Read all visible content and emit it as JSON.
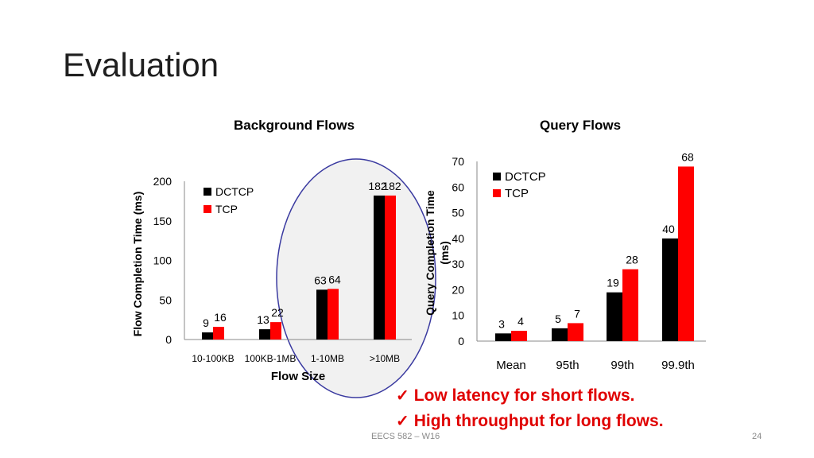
{
  "slide": {
    "title": "Evaluation",
    "footer": "EECS 582 – W16",
    "page_number": "24"
  },
  "takeaways": [
    "Low latency for short flows.",
    "High throughput for long flows."
  ],
  "colors": {
    "dctcp": "#000000",
    "tcp": "#ff0000",
    "highlight_stroke": "#3a3aa0",
    "highlight_fill": "#f1f1f1",
    "takeaway_text": "#e00000"
  },
  "chart_data": [
    {
      "type": "bar",
      "title": "Background Flows",
      "xlabel": "Flow Size",
      "ylabel": "Flow Completion Time (ms)",
      "ylim": [
        0,
        200
      ],
      "yticks": [
        0,
        50,
        100,
        150,
        200
      ],
      "categories": [
        "10-100KB",
        "100KB-1MB",
        "1-10MB",
        ">10MB"
      ],
      "series": [
        {
          "name": "DCTCP",
          "values": [
            9,
            13,
            63,
            182
          ]
        },
        {
          "name": "TCP",
          "values": [
            16,
            22,
            64,
            182
          ]
        }
      ],
      "legend": "top-left",
      "grid": false,
      "highlight": "ellipse around 1-10MB and >10MB"
    },
    {
      "type": "bar",
      "title": "Query Flows",
      "xlabel": "",
      "ylabel": "Query Completion Time (ms)",
      "ylim": [
        0,
        70
      ],
      "yticks": [
        0,
        10,
        20,
        30,
        40,
        50,
        60,
        70
      ],
      "categories": [
        "Mean",
        "95th",
        "99th",
        "99.9th"
      ],
      "series": [
        {
          "name": "DCTCP",
          "values": [
            3,
            5,
            19,
            40
          ]
        },
        {
          "name": "TCP",
          "values": [
            4,
            7,
            28,
            68
          ]
        }
      ],
      "legend": "top-left",
      "grid": false
    }
  ]
}
